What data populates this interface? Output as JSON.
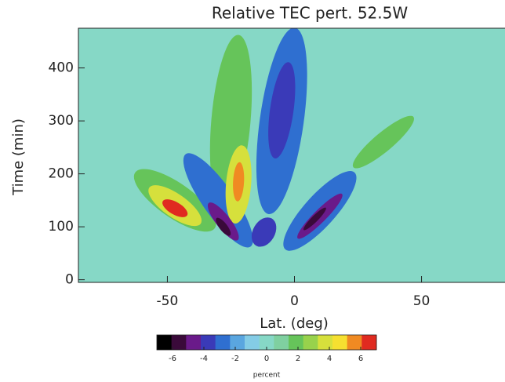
{
  "chart_data": {
    "type": "contour",
    "title": "Relative TEC pert. 52.5W",
    "xlabel": "Lat. (deg)",
    "ylabel": "Time (min)",
    "xlim": [
      -85,
      85
    ],
    "xticks": [
      -50,
      0,
      50
    ],
    "ylim": [
      -5,
      475
    ],
    "yticks": [
      0,
      100,
      200,
      300,
      400
    ],
    "background_value": 0,
    "colorbar": {
      "label": "percent",
      "clim": [
        -7,
        7
      ],
      "ticks": [
        -6,
        -4,
        -2,
        0,
        2,
        4,
        6
      ]
    },
    "features": [
      {
        "lat": -47,
        "time": 150,
        "value": 2
      },
      {
        "lat": -25,
        "time": 300,
        "value": 2
      },
      {
        "lat": 35,
        "time": 260,
        "value": 1.5
      },
      {
        "lat": -30,
        "time": 150,
        "value": -3
      },
      {
        "lat": -5,
        "time": 300,
        "value": -3
      },
      {
        "lat": 10,
        "time": 130,
        "value": -3
      },
      {
        "lat": -47,
        "time": 140,
        "value": 4
      },
      {
        "lat": -22,
        "time": 180,
        "value": 4
      },
      {
        "lat": -5,
        "time": 320,
        "value": -4.5
      },
      {
        "lat": -12,
        "time": 90,
        "value": -4
      },
      {
        "lat": -28,
        "time": 110,
        "value": -5
      },
      {
        "lat": 10,
        "time": 120,
        "value": -5
      },
      {
        "lat": -47,
        "time": 135,
        "value": 6.5
      },
      {
        "lat": -22,
        "time": 185,
        "value": 5.5
      },
      {
        "lat": -28,
        "time": 100,
        "value": -6.5
      },
      {
        "lat": 8,
        "time": 115,
        "value": -6
      }
    ]
  }
}
